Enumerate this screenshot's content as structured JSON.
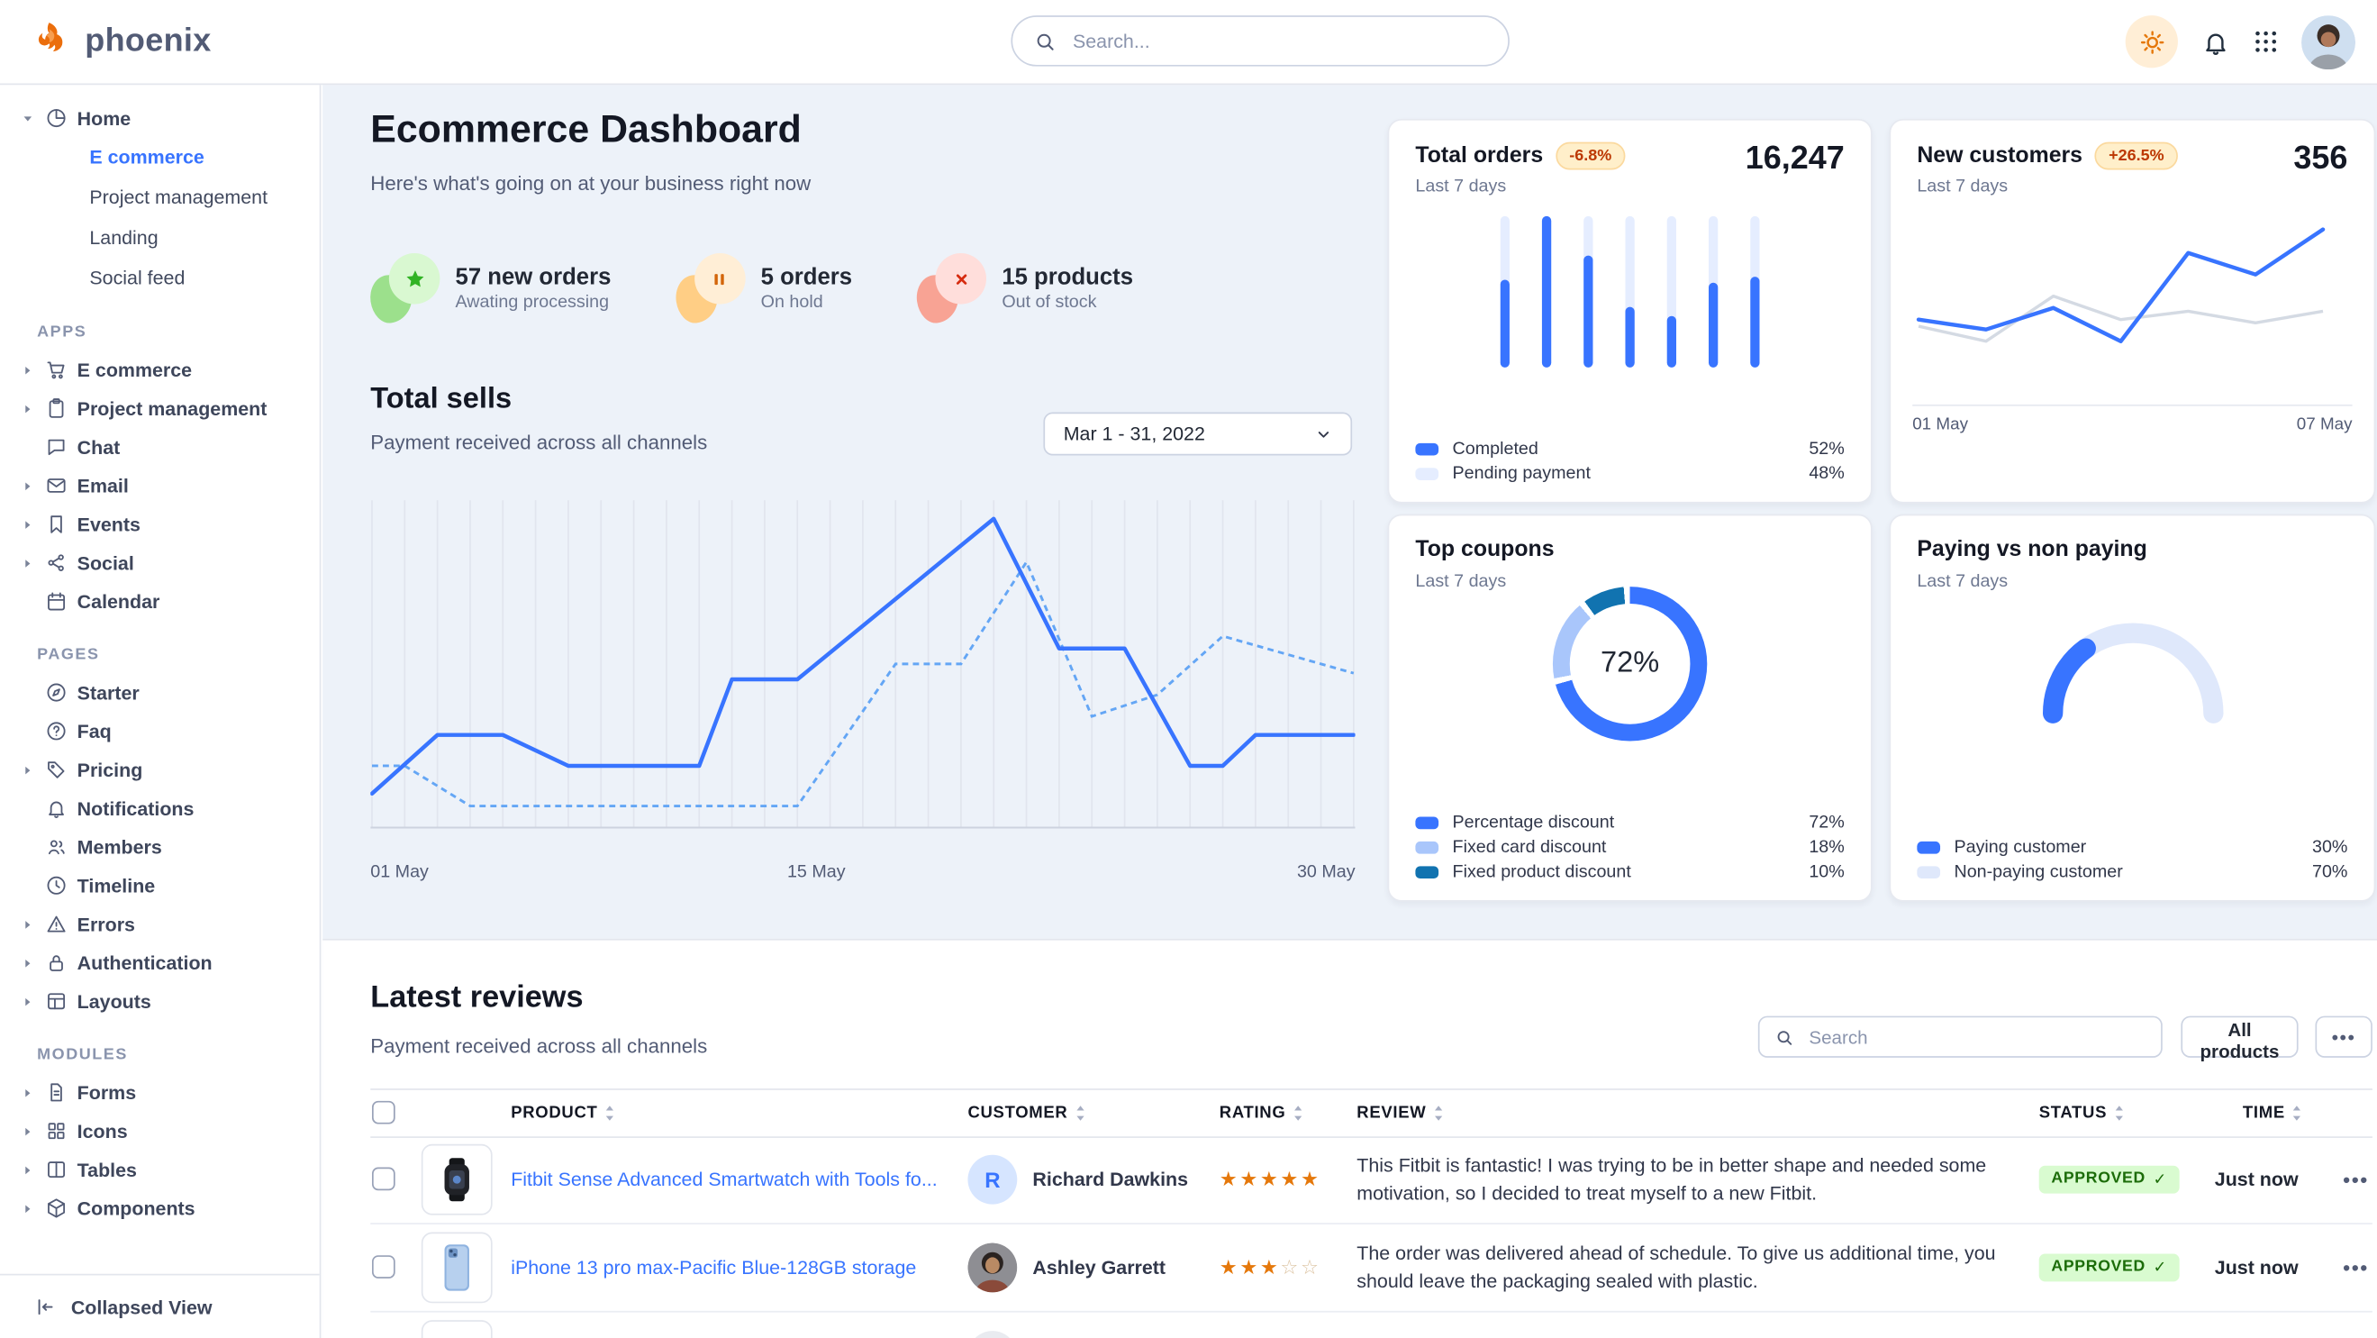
{
  "navbar": {
    "brand": "phoenix",
    "search_placeholder": "Search..."
  },
  "icons": {
    "theme": "sun",
    "alerts": "bell",
    "apps": "nine-dots",
    "search": "magnifier",
    "more": "•••",
    "approved_check": "✓",
    "star_filled": "★",
    "star_empty": "☆"
  },
  "sidebar": {
    "home": {
      "label": "Home",
      "icon": "pie-chart",
      "children": [
        {
          "label": "E commerce",
          "active": true
        },
        {
          "label": "Project management"
        },
        {
          "label": "Landing"
        },
        {
          "label": "Social feed"
        }
      ]
    },
    "sections": [
      {
        "label": "APPS",
        "items": [
          {
            "label": "E commerce",
            "icon": "cart",
            "expandable": true
          },
          {
            "label": "Project management",
            "icon": "clipboard",
            "expandable": true
          },
          {
            "label": "Chat",
            "icon": "chat"
          },
          {
            "label": "Email",
            "icon": "mail",
            "expandable": true
          },
          {
            "label": "Events",
            "icon": "bookmark",
            "expandable": true
          },
          {
            "label": "Social",
            "icon": "share",
            "expandable": true
          },
          {
            "label": "Calendar",
            "icon": "calendar"
          }
        ]
      },
      {
        "label": "PAGES",
        "items": [
          {
            "label": "Starter",
            "icon": "compass"
          },
          {
            "label": "Faq",
            "icon": "question"
          },
          {
            "label": "Pricing",
            "icon": "tag",
            "expandable": true
          },
          {
            "label": "Notifications",
            "icon": "bell"
          },
          {
            "label": "Members",
            "icon": "members"
          },
          {
            "label": "Timeline",
            "icon": "clock"
          },
          {
            "label": "Errors",
            "icon": "warning",
            "expandable": true
          },
          {
            "label": "Authentication",
            "icon": "lock",
            "expandable": true
          },
          {
            "label": "Layouts",
            "icon": "layout",
            "expandable": true
          }
        ]
      },
      {
        "label": "MODULES",
        "items": [
          {
            "label": "Forms",
            "icon": "file",
            "expandable": true
          },
          {
            "label": "Icons",
            "icon": "grid4",
            "expandable": true
          },
          {
            "label": "Tables",
            "icon": "columns",
            "expandable": true
          },
          {
            "label": "Components",
            "icon": "box",
            "expandable": true
          }
        ]
      }
    ],
    "collapse_label": "Collapsed View"
  },
  "header": {
    "title": "Ecommerce Dashboard",
    "subtitle": "Here's what's going on at your business right now",
    "stats": [
      {
        "value_label": "57 new orders",
        "caption": "Awating processing",
        "type": "success",
        "icon": "star"
      },
      {
        "value_label": "5 orders",
        "caption": "On hold",
        "type": "warning",
        "icon": "pause"
      },
      {
        "value_label": "15 products",
        "caption": "Out of stock",
        "type": "danger",
        "icon": "x"
      }
    ]
  },
  "total_sells": {
    "title": "Total sells",
    "subtitle": "Payment received across all channels",
    "date_range": "Mar 1 - 31, 2022",
    "chart": {
      "type": "line",
      "x_axis_labels": [
        "01 May",
        "15 May",
        "30 May"
      ],
      "day_range": [
        1,
        31
      ],
      "grid": true,
      "solid_series": {
        "name": "current",
        "color": "#3874FF",
        "points": [
          [
            1,
            8
          ],
          [
            3,
            27
          ],
          [
            5,
            27
          ],
          [
            7,
            17
          ],
          [
            11,
            17
          ],
          [
            12,
            45
          ],
          [
            14,
            45
          ],
          [
            20,
            97
          ],
          [
            22,
            55
          ],
          [
            24,
            55
          ],
          [
            26,
            17
          ],
          [
            27,
            17
          ],
          [
            28,
            27
          ],
          [
            31,
            27
          ]
        ]
      },
      "dashed_series": {
        "name": "previous",
        "color": "#64a6f5",
        "points": [
          [
            1,
            17
          ],
          [
            2,
            17
          ],
          [
            4,
            4
          ],
          [
            14,
            4
          ],
          [
            17,
            50
          ],
          [
            19,
            50
          ],
          [
            21,
            83
          ],
          [
            23,
            33
          ],
          [
            25,
            40
          ],
          [
            27,
            59
          ],
          [
            31,
            47
          ]
        ]
      }
    }
  },
  "cards": {
    "total_orders": {
      "title": "Total orders",
      "badge": "-6.8%",
      "period": "Last 7 days",
      "value": "16,247",
      "chart": {
        "type": "bar",
        "bar_full": 100,
        "completed_pct": [
          58,
          100,
          74,
          40,
          34,
          56,
          60
        ]
      },
      "legend": [
        {
          "label": "Completed",
          "value": "52%",
          "color": "#3874FF"
        },
        {
          "label": "Pending payment",
          "value": "48%",
          "color": "#E5EDFF"
        }
      ]
    },
    "new_customers": {
      "title": "New customers",
      "badge": "+26.5%",
      "period": "Last 7 days",
      "value": "356",
      "chart": {
        "type": "line",
        "x_axis_labels": [
          "01 May",
          "07 May"
        ],
        "blue_series": [
          38,
          32,
          45,
          25,
          78,
          65,
          92
        ],
        "gray_series": [
          34,
          25,
          52,
          38,
          43,
          36,
          43
        ],
        "colors": {
          "blue": "#3874FF",
          "gray": "#d4dae3"
        }
      }
    },
    "top_coupons": {
      "title": "Top coupons",
      "period": "Last 7 days",
      "center_label": "72%",
      "chart_type": "donut",
      "segments": [
        {
          "label": "Percentage discount",
          "value": 72,
          "color": "#3874FF"
        },
        {
          "label": "Fixed card discount",
          "value": 18,
          "color": "#A9C6FB"
        },
        {
          "label": "Fixed product discount",
          "value": 10,
          "color": "#1173B0"
        }
      ]
    },
    "paying": {
      "title": "Paying vs non paying",
      "period": "Last 7 days",
      "chart_type": "half-gauge",
      "segments": [
        {
          "label": "Paying customer",
          "value": 30,
          "color": "#3874FF"
        },
        {
          "label": "Non-paying customer",
          "value": 70,
          "color": "#DFE8FB"
        }
      ]
    }
  },
  "reviews": {
    "title": "Latest reviews",
    "subtitle": "Payment received across all channels",
    "search_placeholder": "Search",
    "filter_button": "All products",
    "columns": [
      "PRODUCT",
      "CUSTOMER",
      "RATING",
      "REVIEW",
      "STATUS",
      "TIME"
    ],
    "rows": [
      {
        "product": "Fitbit Sense Advanced Smartwatch with Tools fo...",
        "thumb": "smartwatch",
        "customer": "Richard Dawkins",
        "avatar_initial": "R",
        "rating": 5,
        "review": "This Fitbit is fantastic! I was trying to be in better shape and needed some motivation, so I decided to treat myself to a new Fitbit.",
        "status": "APPROVED",
        "time": "Just now"
      },
      {
        "product": "iPhone 13 pro max-Pacific Blue-128GB storage",
        "thumb": "iphone",
        "customer": "Ashley Garrett",
        "avatar_photo": true,
        "rating": 3,
        "review": "The order was delivered ahead of schedule. To give us additional time, you should leave the packaging sealed with plastic.",
        "status": "APPROVED",
        "time": "Just now"
      },
      {
        "partial": true,
        "thumb": "empty"
      }
    ]
  }
}
